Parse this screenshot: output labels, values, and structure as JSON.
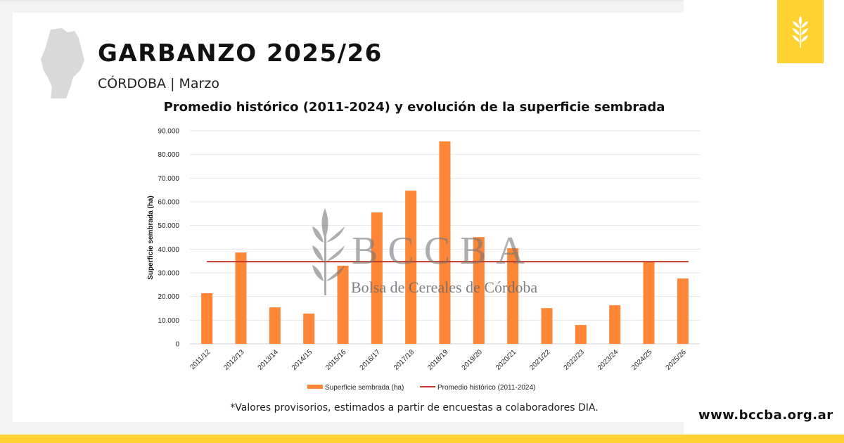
{
  "header": {
    "title": "GARBANZO 2025/26",
    "subtitle": "CÓRDOBA | Marzo"
  },
  "watermark": {
    "logo": "BCCBA",
    "name": "Bolsa de Cereales de Córdoba"
  },
  "footnote": "*Valores provisorios, estimados a partir de encuestas a colaboradores DIA.",
  "url": "www.bccba.org.ar",
  "colors": {
    "bar": "#fe8636",
    "average_line": "#c0392b",
    "brand_yellow": "#fdd231"
  },
  "icons": {
    "badge": "wheat-icon",
    "map": "cordoba-province-map"
  },
  "chart_data": {
    "type": "bar",
    "title": "Promedio histórico (2011-2024) y evolución de la superficie sembrada",
    "xlabel": "",
    "ylabel": "Superficie sembrada (ha)",
    "ylim": [
      0,
      90000
    ],
    "yticks": [
      "0",
      "10.000",
      "20.000",
      "30.000",
      "40.000",
      "50.000",
      "60.000",
      "70.000",
      "80.000",
      "90.000"
    ],
    "grid": true,
    "legend_position": "bottom",
    "categories": [
      "2011/12",
      "2012/13",
      "2013/14",
      "2014/15",
      "2015/16",
      "2016/17",
      "2017/18",
      "2018/19",
      "2019/20",
      "2020/21",
      "2021/22",
      "2022/23",
      "2023/24",
      "2024/25",
      "2025/26"
    ],
    "series": [
      {
        "name": "Superficie sembrada (ha)",
        "type": "bar",
        "values": [
          21400,
          38600,
          15400,
          12800,
          33000,
          55500,
          64700,
          85500,
          45100,
          40400,
          15100,
          8000,
          16300,
          34700,
          27600
        ]
      },
      {
        "name": "Promedio histórico (2011-2024)",
        "type": "line",
        "value": 34700
      }
    ]
  }
}
